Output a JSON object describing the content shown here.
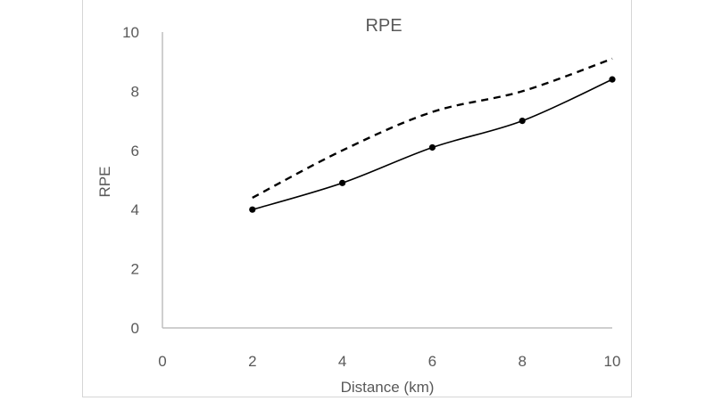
{
  "chart_data": {
    "type": "line",
    "title": "RPE",
    "xlabel": "Distance (km)",
    "ylabel": "RPE",
    "xlim": [
      0,
      10
    ],
    "ylim": [
      0,
      10
    ],
    "x_ticks": [
      "0",
      "2",
      "4",
      "6",
      "8",
      "10"
    ],
    "y_ticks": [
      "0",
      "2",
      "4",
      "6",
      "8",
      "10"
    ],
    "grid": false,
    "legend": "none",
    "series": [
      {
        "style": "dashed",
        "color": "#000000",
        "x": [
          2,
          4,
          6,
          8,
          10
        ],
        "y": [
          4.4,
          6.0,
          7.3,
          8.0,
          9.1
        ]
      },
      {
        "style": "solid-with-markers",
        "color": "#000000",
        "x": [
          2,
          4,
          6,
          8,
          10
        ],
        "y": [
          4.0,
          4.9,
          6.1,
          7.0,
          8.4
        ]
      }
    ]
  }
}
